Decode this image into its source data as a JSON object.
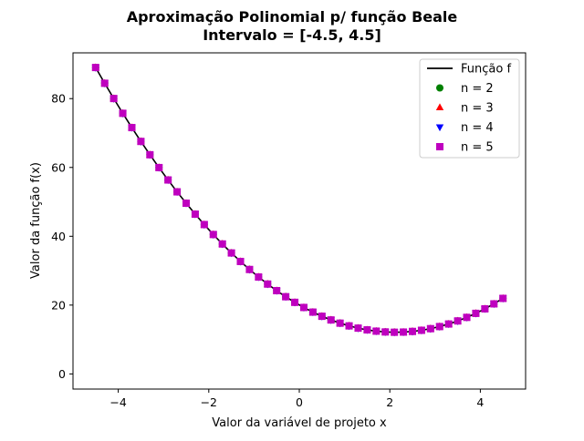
{
  "chart_data": {
    "type": "line",
    "title": [
      "Aproximação Polinomial p/ função Beale",
      "Intervalo = [-4.5, 4.5]"
    ],
    "xlabel": "Valor da variável de projeto x",
    "ylabel": "Valor da função f(x)",
    "xlim": [
      -5.0,
      5.0
    ],
    "ylim": [
      -4.4,
      93.3
    ],
    "xticks": [
      -4,
      -2,
      0,
      2,
      4
    ],
    "yticks": [
      0,
      20,
      40,
      60,
      80
    ],
    "xtick_labels": [
      "−4",
      "−2",
      "0",
      "2",
      "4"
    ],
    "ytick_labels": [
      "0",
      "20",
      "40",
      "60",
      "80"
    ],
    "legend_position": "top-right",
    "grid": false,
    "x": [
      -4.5,
      -4.3,
      -4.1,
      -3.9,
      -3.7,
      -3.5,
      -3.3,
      -3.1,
      -2.9,
      -2.7,
      -2.5,
      -2.3,
      -2.1,
      -1.9,
      -1.7,
      -1.5,
      -1.3,
      -1.1,
      -0.9,
      -0.7,
      -0.5,
      -0.3,
      -0.1,
      0.1,
      0.3,
      0.5,
      0.7,
      0.9,
      1.1,
      1.3,
      1.5,
      1.7,
      1.9,
      2.1,
      2.3,
      2.5,
      2.7,
      2.9,
      3.1,
      3.3,
      3.5,
      3.7,
      3.9,
      4.1,
      4.3,
      4.5
    ],
    "series": [
      {
        "name": "Função f",
        "kind": "line",
        "color": "#000000",
        "values": [
          89.04,
          84.46,
          80.03,
          75.73,
          71.58,
          67.56,
          63.69,
          59.96,
          56.36,
          52.91,
          49.6,
          46.43,
          43.4,
          40.51,
          37.76,
          35.15,
          32.68,
          30.35,
          28.16,
          26.11,
          24.2,
          22.43,
          20.8,
          19.31,
          17.96,
          16.75,
          15.68,
          14.75,
          13.96,
          13.31,
          12.8,
          12.43,
          12.2,
          12.11,
          12.16,
          12.35,
          12.68,
          13.15,
          13.76,
          14.51,
          15.4,
          16.43,
          17.6,
          18.91,
          20.36,
          21.95
        ]
      },
      {
        "name": "n = 2",
        "kind": "markers",
        "marker": "circle",
        "color": "#008000",
        "values": [
          89.04,
          84.46,
          80.03,
          75.73,
          71.58,
          67.56,
          63.69,
          59.96,
          56.36,
          52.91,
          49.6,
          46.43,
          43.4,
          40.51,
          37.76,
          35.15,
          32.68,
          30.35,
          28.16,
          26.11,
          24.2,
          22.43,
          20.8,
          19.31,
          17.96,
          16.75,
          15.68,
          14.75,
          13.96,
          13.31,
          12.8,
          12.43,
          12.2,
          12.11,
          12.16,
          12.35,
          12.68,
          13.15,
          13.76,
          14.51,
          15.4,
          16.43,
          17.6,
          18.91,
          20.36,
          21.95
        ]
      },
      {
        "name": "n = 3",
        "kind": "markers",
        "marker": "triangle-up",
        "color": "#ff0000",
        "values": [
          89.04,
          84.46,
          80.03,
          75.73,
          71.58,
          67.56,
          63.69,
          59.96,
          56.36,
          52.91,
          49.6,
          46.43,
          43.4,
          40.51,
          37.76,
          35.15,
          32.68,
          30.35,
          28.16,
          26.11,
          24.2,
          22.43,
          20.8,
          19.31,
          17.96,
          16.75,
          15.68,
          14.75,
          13.96,
          13.31,
          12.8,
          12.43,
          12.2,
          12.11,
          12.16,
          12.35,
          12.68,
          13.15,
          13.76,
          14.51,
          15.4,
          16.43,
          17.6,
          18.91,
          20.36,
          21.95
        ]
      },
      {
        "name": "n = 4",
        "kind": "markers",
        "marker": "triangle-down",
        "color": "#0000ff",
        "values": [
          89.04,
          84.46,
          80.03,
          75.73,
          71.58,
          67.56,
          63.69,
          59.96,
          56.36,
          52.91,
          49.6,
          46.43,
          43.4,
          40.51,
          37.76,
          35.15,
          32.68,
          30.35,
          28.16,
          26.11,
          24.2,
          22.43,
          20.8,
          19.31,
          17.96,
          16.75,
          15.68,
          14.75,
          13.96,
          13.31,
          12.8,
          12.43,
          12.2,
          12.11,
          12.16,
          12.35,
          12.68,
          13.15,
          13.76,
          14.51,
          15.4,
          16.43,
          17.6,
          18.91,
          20.36,
          21.95
        ]
      },
      {
        "name": "n = 5",
        "kind": "markers",
        "marker": "square",
        "color": "#bf00bf",
        "values": [
          89.04,
          84.46,
          80.03,
          75.73,
          71.58,
          67.56,
          63.69,
          59.96,
          56.36,
          52.91,
          49.6,
          46.43,
          43.4,
          40.51,
          37.76,
          35.15,
          32.68,
          30.35,
          28.16,
          26.11,
          24.2,
          22.43,
          20.8,
          19.31,
          17.96,
          16.75,
          15.68,
          14.75,
          13.96,
          13.31,
          12.8,
          12.43,
          12.2,
          12.11,
          12.16,
          12.35,
          12.68,
          13.15,
          13.76,
          14.51,
          15.4,
          16.43,
          17.6,
          18.91,
          20.36,
          21.95
        ]
      }
    ]
  }
}
